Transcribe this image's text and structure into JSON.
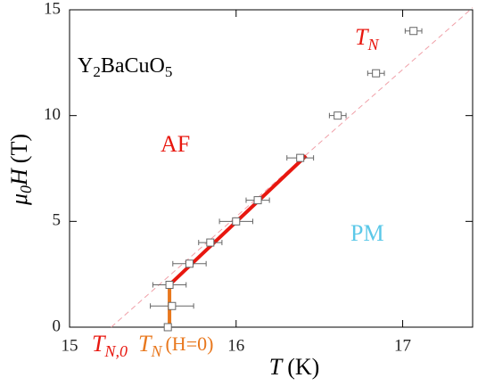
{
  "chart_data": {
    "type": "scatter",
    "x": [
      15.59,
      15.615,
      15.6,
      15.72,
      15.845,
      16.0,
      16.13,
      16.385,
      16.61,
      16.84,
      17.065
    ],
    "values": [
      0,
      1,
      2,
      3,
      4,
      5,
      6,
      8,
      10,
      12,
      14
    ],
    "x_err": [
      0,
      0.13,
      0.1,
      0.1,
      0.07,
      0.1,
      0.07,
      0.08,
      0.05,
      0.05,
      0.05
    ],
    "color": "#666666",
    "xlim": [
      15,
      17.42
    ],
    "ylim": [
      0,
      15
    ],
    "xticks": [
      15,
      16,
      17
    ],
    "yticks": [
      0,
      5,
      10,
      15
    ],
    "lines": [
      {
        "color": "#f0a0a8",
        "dashed": true,
        "x": [
          15.25,
          17.42
        ],
        "y": [
          0,
          15.1
        ]
      },
      {
        "color": "#e8170f",
        "dashed": false,
        "x": [
          15.6,
          16.42
        ],
        "y": [
          2,
          8.1
        ]
      },
      {
        "color": "#e8781e",
        "dashed": false,
        "x": [
          15.6,
          15.6
        ],
        "y": [
          0,
          2
        ]
      }
    ],
    "xlabel": [
      "T",
      "(K)"
    ],
    "ylabel": [
      "μ",
      "0",
      "H",
      "(T)"
    ],
    "compound": [
      "Y",
      "2",
      "BaCuO",
      "5"
    ],
    "tn_label": [
      "T",
      "N"
    ],
    "af_label": "AF",
    "pm_label": "PM",
    "tn0_label": [
      "T",
      "N,0"
    ],
    "tnh0_label": [
      "T",
      "N",
      "(H=0)"
    ]
  }
}
